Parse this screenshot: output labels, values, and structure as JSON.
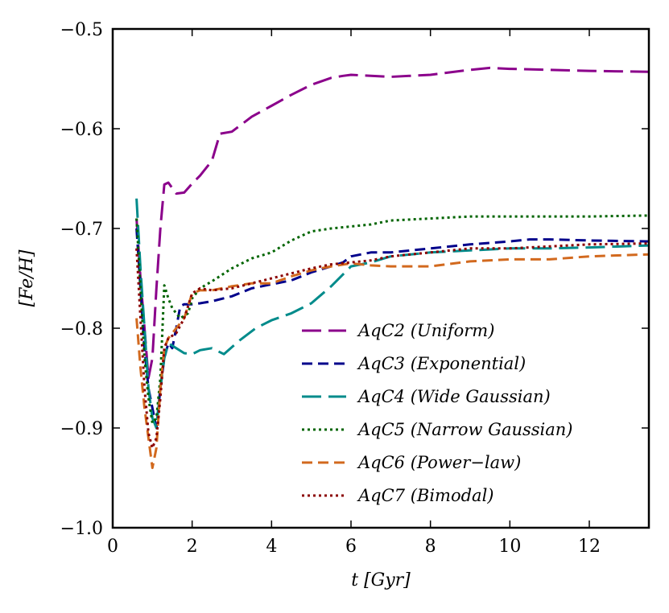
{
  "chart_data": {
    "type": "line",
    "title": "",
    "xlabel": "t [Gyr]",
    "ylabel": "[Fe/H]",
    "xlim": [
      0,
      13.5
    ],
    "ylim": [
      -1.0,
      -0.5
    ],
    "xticks": [
      0,
      2,
      4,
      6,
      8,
      10,
      12
    ],
    "yticks": [
      -1.0,
      -0.9,
      -0.8,
      -0.7,
      -0.6,
      -0.5
    ],
    "xtick_labels": [
      "0",
      "2",
      "4",
      "6",
      "8",
      "10",
      "12"
    ],
    "ytick_labels": [
      "−1.0",
      "−0.9",
      "−0.8",
      "−0.7",
      "−0.6",
      "−0.5"
    ],
    "grid": false,
    "legend_position": "lower-right",
    "series": [
      {
        "name": "AqC2 (Uniform)",
        "color": "#8B008B",
        "dash": "long-dash",
        "x": [
          0.6,
          0.7,
          0.8,
          0.9,
          1.0,
          1.1,
          1.2,
          1.3,
          1.4,
          1.6,
          1.8,
          2.0,
          2.2,
          2.5,
          2.7,
          3.0,
          3.5,
          4.0,
          4.5,
          5.0,
          5.5,
          5.8,
          6.0,
          7.0,
          8.0,
          9.0,
          9.5,
          10.0,
          11.0,
          12.0,
          13.5
        ],
        "y": [
          -0.69,
          -0.75,
          -0.8,
          -0.85,
          -0.83,
          -0.76,
          -0.7,
          -0.656,
          -0.654,
          -0.665,
          -0.664,
          -0.655,
          -0.647,
          -0.632,
          -0.605,
          -0.603,
          -0.588,
          -0.577,
          -0.566,
          -0.556,
          -0.549,
          -0.547,
          -0.546,
          -0.548,
          -0.546,
          -0.541,
          -0.539,
          -0.54,
          -0.541,
          -0.542,
          -0.543
        ]
      },
      {
        "name": "AqC3 (Exponential)",
        "color": "#00008B",
        "dash": "dash",
        "x": [
          0.6,
          0.7,
          0.8,
          0.9,
          1.0,
          1.1,
          1.2,
          1.3,
          1.4,
          1.5,
          1.6,
          1.7,
          1.8,
          2.0,
          2.2,
          2.5,
          3.0,
          3.5,
          4.0,
          4.5,
          5.0,
          5.5,
          5.8,
          6.0,
          6.5,
          7.0,
          8.0,
          9.0,
          10.0,
          10.5,
          11.0,
          12.0,
          13.5
        ],
        "y": [
          -0.7,
          -0.76,
          -0.82,
          -0.86,
          -0.88,
          -0.9,
          -0.86,
          -0.83,
          -0.815,
          -0.82,
          -0.8,
          -0.778,
          -0.776,
          -0.776,
          -0.775,
          -0.773,
          -0.768,
          -0.76,
          -0.756,
          -0.752,
          -0.744,
          -0.738,
          -0.734,
          -0.728,
          -0.724,
          -0.724,
          -0.72,
          -0.716,
          -0.713,
          -0.711,
          -0.711,
          -0.712,
          -0.713
        ]
      },
      {
        "name": "AqC4 (Wide Gaussian)",
        "color": "#008B8B",
        "dash": "long-dash",
        "x": [
          0.6,
          0.7,
          0.8,
          0.9,
          1.0,
          1.1,
          1.2,
          1.3,
          1.4,
          1.6,
          1.8,
          2.0,
          2.2,
          2.5,
          2.8,
          3.2,
          3.6,
          4.0,
          4.5,
          5.0,
          5.5,
          6.0,
          6.5,
          7.0,
          8.0,
          9.0,
          10.0,
          11.0,
          12.0,
          13.5
        ],
        "y": [
          -0.67,
          -0.74,
          -0.8,
          -0.86,
          -0.89,
          -0.9,
          -0.86,
          -0.83,
          -0.815,
          -0.82,
          -0.825,
          -0.826,
          -0.822,
          -0.82,
          -0.826,
          -0.812,
          -0.8,
          -0.792,
          -0.785,
          -0.775,
          -0.758,
          -0.738,
          -0.734,
          -0.728,
          -0.724,
          -0.722,
          -0.72,
          -0.72,
          -0.719,
          -0.717
        ]
      },
      {
        "name": "AqC5 (Narrow Gaussian)",
        "color": "#006400",
        "dash": "dot",
        "x": [
          0.6,
          0.7,
          0.8,
          0.9,
          1.0,
          1.1,
          1.2,
          1.3,
          1.4,
          1.5,
          1.7,
          1.9,
          2.0,
          2.2,
          2.5,
          3.0,
          3.5,
          4.0,
          4.5,
          5.0,
          5.5,
          6.0,
          6.5,
          7.0,
          8.0,
          9.0,
          10.0,
          11.0,
          12.0,
          13.5
        ],
        "y": [
          -0.69,
          -0.76,
          -0.83,
          -0.87,
          -0.895,
          -0.89,
          -0.85,
          -0.757,
          -0.77,
          -0.78,
          -0.79,
          -0.785,
          -0.77,
          -0.76,
          -0.753,
          -0.74,
          -0.73,
          -0.724,
          -0.712,
          -0.703,
          -0.7,
          -0.698,
          -0.696,
          -0.692,
          -0.69,
          -0.688,
          -0.688,
          -0.688,
          -0.688,
          -0.687
        ]
      },
      {
        "name": "AqC6 (Power−law)",
        "color": "#D2691E",
        "dash": "dash",
        "x": [
          0.6,
          0.7,
          0.8,
          0.9,
          1.0,
          1.1,
          1.2,
          1.3,
          1.4,
          1.6,
          1.8,
          2.0,
          2.2,
          2.5,
          3.0,
          3.5,
          4.0,
          4.5,
          5.0,
          5.5,
          6.0,
          6.5,
          7.0,
          8.0,
          9.0,
          10.0,
          11.0,
          12.0,
          13.5
        ],
        "y": [
          -0.79,
          -0.84,
          -0.88,
          -0.91,
          -0.94,
          -0.92,
          -0.86,
          -0.82,
          -0.81,
          -0.8,
          -0.79,
          -0.765,
          -0.762,
          -0.762,
          -0.758,
          -0.755,
          -0.755,
          -0.748,
          -0.742,
          -0.738,
          -0.735,
          -0.737,
          -0.738,
          -0.738,
          -0.733,
          -0.731,
          -0.731,
          -0.728,
          -0.726
        ]
      },
      {
        "name": "AqC7 (Bimodal)",
        "color": "#8B0000",
        "dash": "dot",
        "x": [
          0.6,
          0.7,
          0.8,
          0.9,
          1.0,
          1.1,
          1.2,
          1.3,
          1.4,
          1.6,
          1.8,
          2.0,
          2.2,
          2.5,
          3.0,
          3.5,
          4.0,
          4.5,
          5.0,
          5.5,
          6.0,
          6.5,
          7.0,
          8.0,
          9.0,
          10.0,
          11.0,
          12.0,
          13.5
        ],
        "y": [
          -0.72,
          -0.79,
          -0.86,
          -0.905,
          -0.92,
          -0.91,
          -0.87,
          -0.82,
          -0.81,
          -0.805,
          -0.79,
          -0.765,
          -0.76,
          -0.762,
          -0.76,
          -0.755,
          -0.75,
          -0.745,
          -0.74,
          -0.736,
          -0.734,
          -0.732,
          -0.728,
          -0.724,
          -0.72,
          -0.72,
          -0.718,
          -0.716,
          -0.715
        ]
      }
    ]
  }
}
